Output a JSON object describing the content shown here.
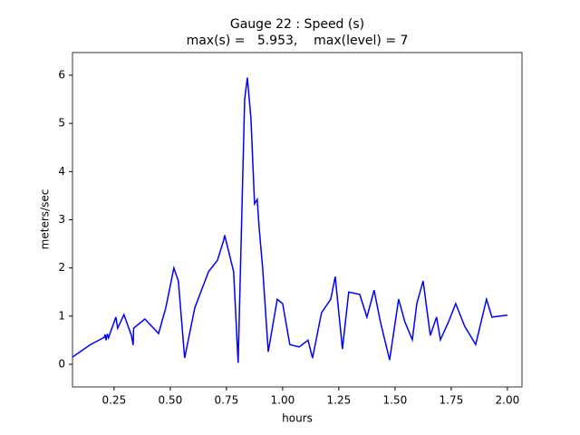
{
  "chart_data": {
    "type": "line",
    "title": "Gauge 22 : Speed (s)",
    "subtitle": "max(s) =   5.953,    max(level) = 7",
    "x_label": "hours",
    "y_label": "meters/sec",
    "x": [
      0.065,
      0.145,
      0.206,
      0.21,
      0.214,
      0.22,
      0.225,
      0.258,
      0.266,
      0.294,
      0.327,
      0.335,
      0.337,
      0.387,
      0.448,
      0.48,
      0.516,
      0.536,
      0.564,
      0.609,
      0.67,
      0.71,
      0.738,
      0.742,
      0.782,
      0.802,
      0.831,
      0.843,
      0.859,
      0.875,
      0.887,
      0.895,
      0.911,
      0.936,
      0.976,
      1.0,
      1.032,
      1.073,
      1.113,
      1.133,
      1.173,
      1.214,
      1.234,
      1.266,
      1.294,
      1.343,
      1.375,
      1.407,
      1.435,
      1.476,
      1.516,
      1.544,
      1.577,
      1.597,
      1.625,
      1.657,
      1.685,
      1.702,
      1.738,
      1.77,
      1.81,
      1.859,
      1.907,
      1.931,
      2.0
    ],
    "series": [
      {
        "name": "speed",
        "color": "#0000ff",
        "values": [
          0.15,
          0.41,
          0.56,
          0.62,
          0.5,
          0.63,
          0.55,
          0.98,
          0.75,
          1.03,
          0.6,
          0.4,
          0.75,
          0.94,
          0.64,
          1.17,
          2.0,
          1.73,
          0.13,
          1.17,
          1.92,
          2.16,
          2.58,
          2.68,
          1.92,
          0.03,
          5.5,
          5.95,
          5.1,
          3.33,
          3.42,
          2.86,
          2.0,
          0.26,
          1.35,
          1.26,
          0.41,
          0.36,
          0.5,
          0.13,
          1.07,
          1.35,
          1.82,
          0.32,
          1.5,
          1.45,
          0.98,
          1.54,
          0.88,
          0.09,
          1.35,
          0.88,
          0.51,
          1.26,
          1.73,
          0.6,
          0.98,
          0.51,
          0.88,
          1.26,
          0.79,
          0.41,
          1.35,
          0.98,
          1.02
        ]
      }
    ],
    "xlim": [
      0.065,
      2.065
    ],
    "ylim": [
      -0.47,
      6.47
    ],
    "xticks": [
      {
        "value": 0.25,
        "label": "0.25"
      },
      {
        "value": 0.5,
        "label": "0.50"
      },
      {
        "value": 0.75,
        "label": "0.75"
      },
      {
        "value": 1.0,
        "label": "1.00"
      },
      {
        "value": 1.25,
        "label": "1.25"
      },
      {
        "value": 1.5,
        "label": "1.50"
      },
      {
        "value": 1.75,
        "label": "1.75"
      },
      {
        "value": 2.0,
        "label": "2.00"
      }
    ],
    "yticks": [
      0,
      1,
      2,
      3,
      4,
      5,
      6
    ]
  }
}
